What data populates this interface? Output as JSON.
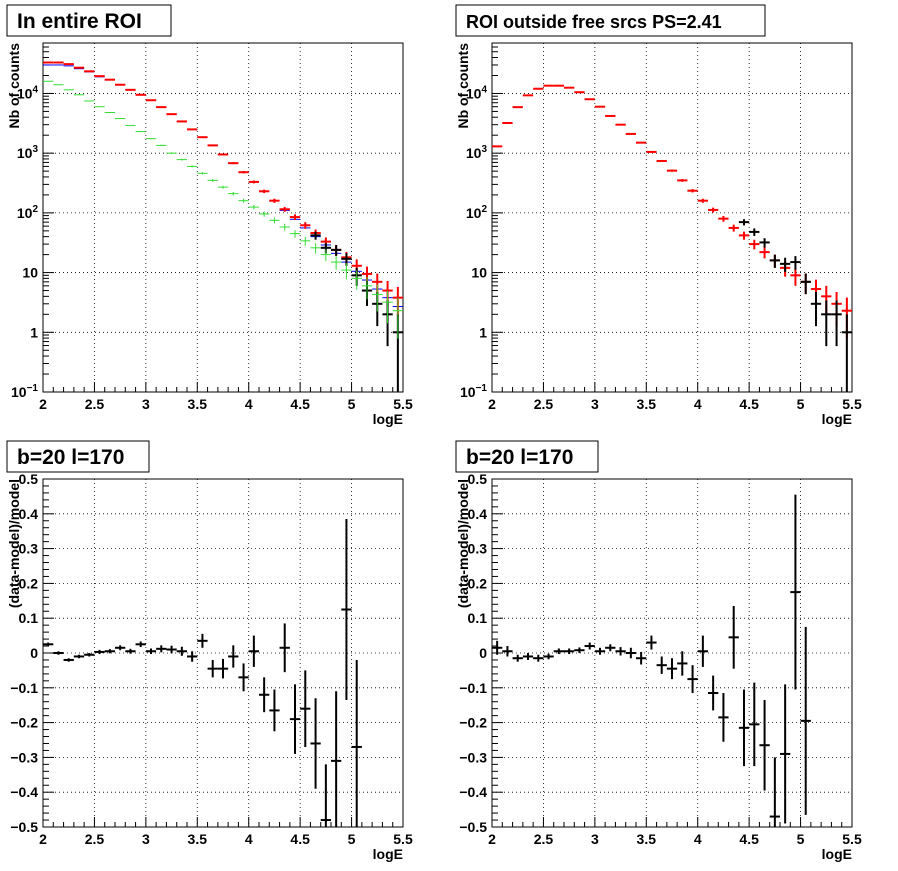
{
  "chart_data": [
    {
      "type": "scatter",
      "title": "In entire ROI",
      "xlabel": "logE",
      "ylabel": "Nb of counts",
      "xlim": [
        2,
        5.5
      ],
      "ylim": [
        0.1,
        70000
      ],
      "log_y": true,
      "grid": true,
      "x_ticks": [
        "2",
        "2.5",
        "3",
        "3.5",
        "4",
        "4.5",
        "5",
        "5.5"
      ],
      "y_ticks": [
        {
          "value": 0.1,
          "base": "10",
          "exp": "−1"
        },
        {
          "value": 1,
          "label": "1"
        },
        {
          "value": 10,
          "label": "10"
        },
        {
          "value": 100,
          "base": "10",
          "exp": "2"
        },
        {
          "value": 1000,
          "base": "10",
          "exp": "3"
        },
        {
          "value": 10000,
          "base": "10",
          "exp": "4"
        }
      ],
      "x": [
        2.05,
        2.15,
        2.25,
        2.35,
        2.45,
        2.55,
        2.65,
        2.75,
        2.85,
        2.95,
        3.05,
        3.15,
        3.25,
        3.35,
        3.45,
        3.55,
        3.65,
        3.75,
        3.85,
        3.95,
        4.05,
        4.15,
        4.25,
        4.35,
        4.45,
        4.55,
        4.65,
        4.75,
        4.85,
        4.95,
        5.05,
        5.15,
        5.25,
        5.35,
        5.45
      ],
      "series": [
        {
          "color": "#0000ff",
          "bold": false,
          "values": [
            30000,
            30000,
            29000,
            26000,
            23000,
            19000,
            17000,
            14000,
            11500,
            9500,
            7700,
            5900,
            4500,
            3400,
            2500,
            1850,
            1350,
            950,
            680,
            480,
            330,
            230,
            158,
            110,
            78,
            56,
            40,
            29,
            21,
            15,
            10.5,
            7.5,
            5.3,
            3.8,
            2.7
          ],
          "errors": null
        },
        {
          "color": "#ff0000",
          "bold": true,
          "values": [
            33000,
            33000,
            31000,
            27000,
            23500,
            19500,
            17000,
            14000,
            11500,
            9500,
            7700,
            5900,
            4500,
            3400,
            2500,
            1850,
            1350,
            950,
            680,
            480,
            330,
            230,
            160,
            115,
            85,
            62,
            46,
            33,
            24,
            18,
            13,
            9.5,
            7,
            5,
            3.8
          ],
          "errors": "poisson"
        },
        {
          "color": "#000000",
          "bold": true,
          "values": [
            null,
            null,
            null,
            null,
            null,
            null,
            null,
            null,
            null,
            null,
            null,
            null,
            null,
            null,
            null,
            null,
            null,
            null,
            null,
            null,
            null,
            null,
            null,
            null,
            null,
            null,
            42,
            26,
            24,
            17,
            9,
            5,
            3,
            2,
            1
          ],
          "errors": "poisson"
        },
        {
          "color": "#33dd33",
          "bold": false,
          "values": [
            16000,
            14000,
            11500,
            9500,
            7500,
            6000,
            4800,
            3800,
            2900,
            2300,
            1750,
            1350,
            1000,
            780,
            600,
            460,
            350,
            270,
            210,
            160,
            125,
            96,
            75,
            58,
            45,
            34,
            26,
            20,
            15,
            11,
            8,
            6,
            4.3,
            3.2,
            2.3
          ],
          "errors": "poisson"
        }
      ]
    },
    {
      "type": "scatter",
      "title": "ROI outside free srcs PS=2.41",
      "xlabel": "logE",
      "ylabel": "Nb of counts",
      "xlim": [
        2,
        5.5
      ],
      "ylim": [
        0.1,
        70000
      ],
      "log_y": true,
      "grid": true,
      "x_ticks": [
        "2",
        "2.5",
        "3",
        "3.5",
        "4",
        "4.5",
        "5",
        "5.5"
      ],
      "y_ticks": [
        {
          "value": 0.1,
          "base": "10",
          "exp": "−1"
        },
        {
          "value": 1,
          "label": "1"
        },
        {
          "value": 10,
          "label": "10"
        },
        {
          "value": 100,
          "base": "10",
          "exp": "2"
        },
        {
          "value": 1000,
          "base": "10",
          "exp": "3"
        },
        {
          "value": 10000,
          "base": "10",
          "exp": "4"
        }
      ],
      "x": [
        2.05,
        2.15,
        2.25,
        2.35,
        2.45,
        2.55,
        2.65,
        2.75,
        2.85,
        2.95,
        3.05,
        3.15,
        3.25,
        3.35,
        3.45,
        3.55,
        3.65,
        3.75,
        3.85,
        3.95,
        4.05,
        4.15,
        4.25,
        4.35,
        4.45,
        4.55,
        4.65,
        4.75,
        4.85,
        4.95,
        5.05,
        5.15,
        5.25,
        5.35,
        5.45
      ],
      "series": [
        {
          "color": "#ff0000",
          "bold": true,
          "values": [
            1300,
            3200,
            5900,
            9300,
            12000,
            13500,
            13500,
            12500,
            10500,
            8000,
            6000,
            4200,
            3000,
            2100,
            1500,
            1050,
            740,
            510,
            350,
            235,
            160,
            112,
            80,
            56,
            42,
            30,
            22,
            16,
            12,
            9,
            7,
            5.3,
            4,
            3,
            2.3
          ],
          "errors": "poisson"
        },
        {
          "color": "#000000",
          "bold": true,
          "values": [
            null,
            null,
            null,
            null,
            null,
            null,
            null,
            null,
            null,
            null,
            null,
            null,
            null,
            null,
            null,
            null,
            null,
            null,
            null,
            null,
            null,
            null,
            null,
            null,
            null,
            null,
            null,
            null,
            null,
            null,
            null,
            null,
            null,
            null,
            null
          ],
          "errors": null
        },
        {
          "color": "#000000",
          "bold": true,
          "values": [
            null,
            null,
            null,
            null,
            null,
            null,
            null,
            null,
            null,
            null,
            null,
            null,
            null,
            null,
            null,
            null,
            null,
            null,
            null,
            null,
            null,
            null,
            null,
            null,
            70,
            48,
            32,
            16,
            14,
            15,
            7,
            3,
            2,
            2,
            1
          ],
          "errors": "poisson"
        }
      ]
    },
    {
      "type": "scatter",
      "title": "b=20 l=170",
      "xlabel": "logE",
      "ylabel": "(data-model)/model",
      "xlim": [
        2,
        5.5
      ],
      "ylim": [
        -0.5,
        0.5
      ],
      "log_y": false,
      "grid": true,
      "x_ticks": [
        "2",
        "2.5",
        "3",
        "3.5",
        "4",
        "4.5",
        "5",
        "5.5"
      ],
      "y_ticks": [
        {
          "value": -0.5,
          "label": "−0.5"
        },
        {
          "value": -0.4,
          "label": "−0.4"
        },
        {
          "value": -0.3,
          "label": "−0.3"
        },
        {
          "value": -0.2,
          "label": "−0.2"
        },
        {
          "value": -0.1,
          "label": "−0.1"
        },
        {
          "value": 0,
          "label": "0"
        },
        {
          "value": 0.1,
          "label": "0.1"
        },
        {
          "value": 0.2,
          "label": "0.2"
        },
        {
          "value": 0.3,
          "label": "0.3"
        },
        {
          "value": 0.4,
          "label": "0.4"
        },
        {
          "value": 0.5,
          "label": "0.5"
        }
      ],
      "x": [
        2.05,
        2.15,
        2.25,
        2.35,
        2.45,
        2.55,
        2.65,
        2.75,
        2.85,
        2.95,
        3.05,
        3.15,
        3.25,
        3.35,
        3.45,
        3.55,
        3.65,
        3.75,
        3.85,
        3.95,
        4.05,
        4.15,
        4.25,
        4.35,
        4.45,
        4.55,
        4.65,
        4.75,
        4.85,
        4.95,
        5.05
      ],
      "series": [
        {
          "color": "#000000",
          "bold": true,
          "values": [
            0.025,
            0.0,
            -0.02,
            -0.01,
            -0.005,
            0.003,
            0.005,
            0.015,
            0.005,
            0.025,
            0.005,
            0.012,
            0.01,
            0.005,
            -0.01,
            0.035,
            -0.045,
            -0.045,
            -0.01,
            -0.07,
            0.005,
            -0.12,
            -0.165,
            0.015,
            -0.19,
            -0.16,
            -0.26,
            -0.48,
            -0.31,
            0.125,
            -0.27
          ],
          "errors": [
            0.005,
            0.005,
            0.005,
            0.005,
            0.005,
            0.006,
            0.006,
            0.007,
            0.007,
            0.008,
            0.008,
            0.01,
            0.011,
            0.013,
            0.015,
            0.02,
            0.025,
            0.028,
            0.032,
            0.04,
            0.045,
            0.05,
            0.06,
            0.07,
            0.1,
            0.11,
            0.13,
            0.16,
            0.2,
            0.26,
            0.25
          ]
        }
      ]
    },
    {
      "type": "scatter",
      "title": "b=20 l=170",
      "xlabel": "logE",
      "ylabel": "(data-model)/model",
      "xlim": [
        2,
        5.5
      ],
      "ylim": [
        -0.5,
        0.5
      ],
      "log_y": false,
      "grid": true,
      "x_ticks": [
        "2",
        "2.5",
        "3",
        "3.5",
        "4",
        "4.5",
        "5",
        "5.5"
      ],
      "y_ticks": [
        {
          "value": -0.5,
          "label": "−0.5"
        },
        {
          "value": -0.4,
          "label": "−0.4"
        },
        {
          "value": -0.3,
          "label": "−0.3"
        },
        {
          "value": -0.2,
          "label": "−0.2"
        },
        {
          "value": -0.1,
          "label": "−0.1"
        },
        {
          "value": 0,
          "label": "0"
        },
        {
          "value": 0.1,
          "label": "0.1"
        },
        {
          "value": 0.2,
          "label": "0.2"
        },
        {
          "value": 0.3,
          "label": "0.3"
        },
        {
          "value": 0.4,
          "label": "0.4"
        },
        {
          "value": 0.5,
          "label": "0.5"
        }
      ],
      "x": [
        2.05,
        2.15,
        2.25,
        2.35,
        2.45,
        2.55,
        2.65,
        2.75,
        2.85,
        2.95,
        3.05,
        3.15,
        3.25,
        3.35,
        3.45,
        3.55,
        3.65,
        3.75,
        3.85,
        3.95,
        4.05,
        4.15,
        4.25,
        4.35,
        4.45,
        4.55,
        4.65,
        4.75,
        4.85,
        4.95,
        5.05
      ],
      "series": [
        {
          "color": "#000000",
          "bold": true,
          "values": [
            0.015,
            0.005,
            -0.015,
            -0.01,
            -0.015,
            -0.01,
            0.005,
            0.005,
            0.008,
            0.02,
            0.005,
            0.015,
            0.005,
            0.0,
            -0.015,
            0.03,
            -0.035,
            -0.045,
            -0.03,
            -0.075,
            0.005,
            -0.115,
            -0.185,
            0.045,
            -0.215,
            -0.205,
            -0.265,
            -0.47,
            -0.29,
            0.175,
            -0.195
          ],
          "errors": [
            0.02,
            0.015,
            0.01,
            0.01,
            0.01,
            0.008,
            0.008,
            0.008,
            0.008,
            0.01,
            0.01,
            0.01,
            0.012,
            0.015,
            0.018,
            0.02,
            0.025,
            0.03,
            0.035,
            0.04,
            0.045,
            0.05,
            0.07,
            0.09,
            0.11,
            0.12,
            0.13,
            0.17,
            0.2,
            0.28,
            0.27
          ]
        }
      ]
    }
  ]
}
